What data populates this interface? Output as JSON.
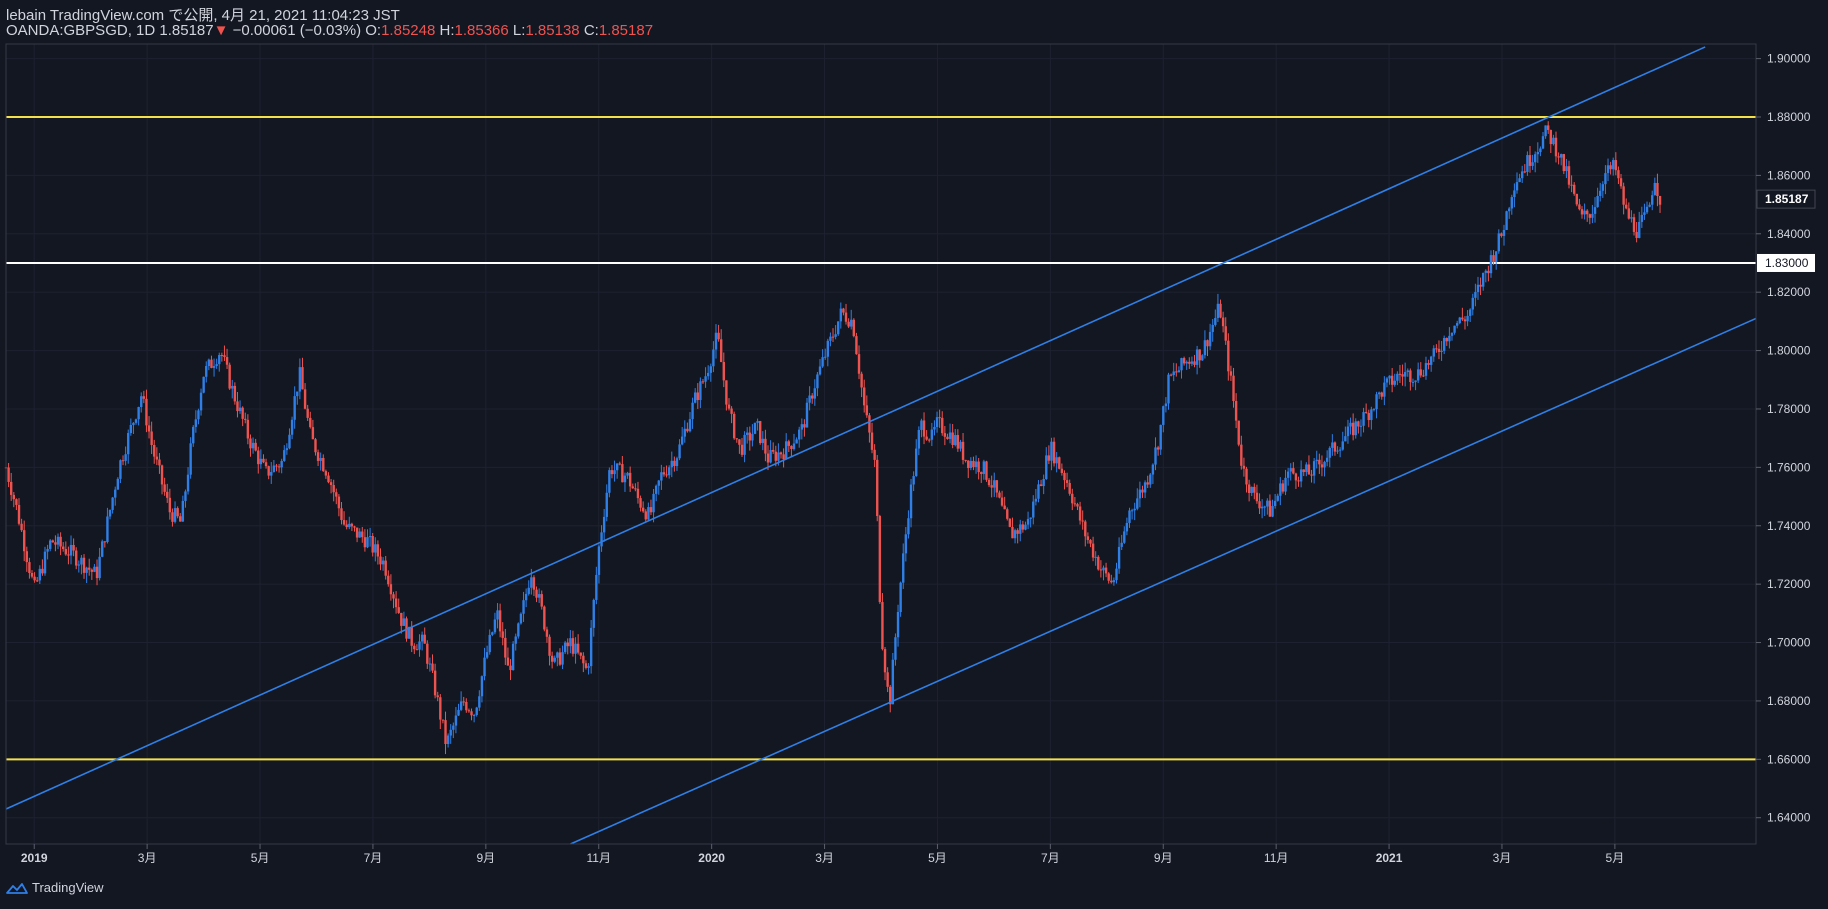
{
  "header": {
    "published": "lebain TradingView.com で公開, 4月 21, 2021 11:04:23 JST",
    "symbol": "OANDA:GBPSGD, 1D",
    "last": "1.85187",
    "arrow": "▼",
    "change": "−0.00061 (−0.03%)",
    "o_label": "O:",
    "o": "1.85248",
    "h_label": "H:",
    "h": "1.85366",
    "l_label": "L:",
    "l": "1.85138",
    "c_label": "C:",
    "c": "1.85187"
  },
  "footer": {
    "brand": "TradingView"
  },
  "colors": {
    "up": "#2f7fe6",
    "down": "#ef5350",
    "bg": "#131722",
    "yellow": "#f4e04d",
    "channel": "#2f7fe6",
    "grid": "#1e2230"
  },
  "chart_data": {
    "type": "candlestick",
    "interval": "1D",
    "y_ticks": [
      "1.90000",
      "1.88000",
      "1.86000",
      "1.84000",
      "1.82000",
      "1.80000",
      "1.78000",
      "1.76000",
      "1.74000",
      "1.72000",
      "1.70000",
      "1.68000",
      "1.66000",
      "1.64000"
    ],
    "ylim": [
      1.631,
      1.905
    ],
    "x_ticks": [
      "2019",
      "3月",
      "5月",
      "7月",
      "9月",
      "11月",
      "2020",
      "3月",
      "5月",
      "7月",
      "9月",
      "11月",
      "2021",
      "3月",
      "5月"
    ],
    "x_tick_bold": [
      "2019",
      "2020",
      "2021"
    ],
    "x_tick_months": [
      12,
      14,
      16,
      18,
      20,
      22,
      24,
      26,
      28,
      30,
      32,
      34,
      36,
      38,
      40
    ],
    "xlim_months": [
      11.5,
      42.5
    ],
    "price_label": "1.85187",
    "level_label": "1.83000",
    "horizontal_lines": [
      {
        "value": 1.88,
        "color": "#f4e04d"
      },
      {
        "value": 1.83,
        "color": "#ffffff"
      },
      {
        "value": 1.66,
        "color": "#f4e04d"
      }
    ],
    "trend_lines": [
      {
        "from": [
          11.5,
          1.643
        ],
        "to": [
          41.6,
          1.904
        ],
        "color": "#2f7fe6"
      },
      {
        "from": [
          21.5,
          1.631
        ],
        "to": [
          42.5,
          1.811
        ],
        "color": "#2f7fe6"
      }
    ],
    "close_path": [
      [
        11.5,
        1.76
      ],
      [
        11.7,
        1.745
      ],
      [
        12.0,
        1.718
      ],
      [
        12.3,
        1.735
      ],
      [
        12.7,
        1.73
      ],
      [
        13.1,
        1.723
      ],
      [
        13.5,
        1.76
      ],
      [
        13.9,
        1.785
      ],
      [
        14.1,
        1.766
      ],
      [
        14.4,
        1.745
      ],
      [
        14.6,
        1.741
      ],
      [
        14.8,
        1.77
      ],
      [
        15.0,
        1.792
      ],
      [
        15.3,
        1.8
      ],
      [
        15.5,
        1.787
      ],
      [
        15.8,
        1.77
      ],
      [
        16.1,
        1.758
      ],
      [
        16.4,
        1.762
      ],
      [
        16.7,
        1.792
      ],
      [
        16.9,
        1.77
      ],
      [
        17.2,
        1.758
      ],
      [
        17.5,
        1.74
      ],
      [
        17.9,
        1.735
      ],
      [
        18.2,
        1.727
      ],
      [
        18.5,
        1.708
      ],
      [
        18.7,
        1.7
      ],
      [
        18.9,
        1.7
      ],
      [
        19.1,
        1.684
      ],
      [
        19.3,
        1.665
      ],
      [
        19.6,
        1.68
      ],
      [
        19.8,
        1.676
      ],
      [
        20.0,
        1.695
      ],
      [
        20.2,
        1.71
      ],
      [
        20.4,
        1.69
      ],
      [
        20.6,
        1.706
      ],
      [
        20.8,
        1.725
      ],
      [
        21.0,
        1.71
      ],
      [
        21.2,
        1.692
      ],
      [
        21.5,
        1.7
      ],
      [
        21.8,
        1.69
      ],
      [
        22.0,
        1.732
      ],
      [
        22.2,
        1.76
      ],
      [
        22.5,
        1.757
      ],
      [
        22.7,
        1.749
      ],
      [
        22.9,
        1.743
      ],
      [
        23.1,
        1.757
      ],
      [
        23.4,
        1.765
      ],
      [
        23.7,
        1.783
      ],
      [
        23.9,
        1.792
      ],
      [
        24.1,
        1.805
      ],
      [
        24.3,
        1.779
      ],
      [
        24.5,
        1.766
      ],
      [
        24.8,
        1.774
      ],
      [
        25.0,
        1.763
      ],
      [
        25.3,
        1.766
      ],
      [
        25.6,
        1.773
      ],
      [
        25.8,
        1.787
      ],
      [
        26.0,
        1.798
      ],
      [
        26.3,
        1.813
      ],
      [
        26.5,
        1.81
      ],
      [
        26.7,
        1.781
      ],
      [
        26.9,
        1.76
      ],
      [
        27.0,
        1.705
      ],
      [
        27.15,
        1.678
      ],
      [
        27.3,
        1.712
      ],
      [
        27.5,
        1.748
      ],
      [
        27.7,
        1.775
      ],
      [
        27.9,
        1.77
      ],
      [
        28.0,
        1.775
      ],
      [
        28.3,
        1.77
      ],
      [
        28.5,
        1.763
      ],
      [
        28.8,
        1.76
      ],
      [
        29.0,
        1.753
      ],
      [
        29.3,
        1.737
      ],
      [
        29.6,
        1.741
      ],
      [
        29.9,
        1.76
      ],
      [
        30.0,
        1.767
      ],
      [
        30.3,
        1.755
      ],
      [
        30.6,
        1.738
      ],
      [
        30.9,
        1.725
      ],
      [
        31.1,
        1.72
      ],
      [
        31.4,
        1.745
      ],
      [
        31.7,
        1.755
      ],
      [
        31.9,
        1.768
      ],
      [
        32.1,
        1.79
      ],
      [
        32.4,
        1.796
      ],
      [
        32.7,
        1.8
      ],
      [
        33.0,
        1.815
      ],
      [
        33.2,
        1.789
      ],
      [
        33.4,
        1.76
      ],
      [
        33.6,
        1.75
      ],
      [
        33.9,
        1.745
      ],
      [
        34.2,
        1.758
      ],
      [
        34.6,
        1.758
      ],
      [
        34.9,
        1.764
      ],
      [
        35.2,
        1.77
      ],
      [
        35.6,
        1.778
      ],
      [
        35.9,
        1.787
      ],
      [
        36.2,
        1.792
      ],
      [
        36.5,
        1.792
      ],
      [
        36.8,
        1.798
      ],
      [
        37.1,
        1.808
      ],
      [
        37.4,
        1.812
      ],
      [
        37.6,
        1.822
      ],
      [
        37.8,
        1.831
      ],
      [
        38.0,
        1.84
      ],
      [
        38.2,
        1.857
      ],
      [
        38.5,
        1.866
      ],
      [
        38.8,
        1.875
      ],
      [
        39.0,
        1.868
      ],
      [
        39.2,
        1.857
      ],
      [
        39.4,
        1.845
      ],
      [
        39.6,
        1.848
      ],
      [
        39.8,
        1.86
      ],
      [
        40.0,
        1.863
      ],
      [
        40.2,
        1.847
      ],
      [
        40.4,
        1.841
      ],
      [
        40.6,
        1.848
      ],
      [
        40.7,
        1.86
      ],
      [
        40.8,
        1.852
      ]
    ]
  }
}
